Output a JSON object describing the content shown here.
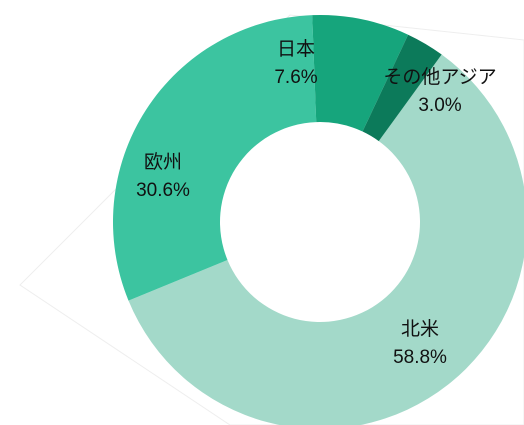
{
  "chart_data": {
    "type": "donut",
    "categories": [
      "北米",
      "欧州",
      "日本",
      "その他アジア"
    ],
    "values": [
      58.8,
      30.6,
      7.6,
      3.0
    ],
    "value_labels": [
      "58.8%",
      "30.6%",
      "7.6%",
      "3.0%"
    ],
    "colors": [
      "#a3d9c9",
      "#3cc4a0",
      "#16a57c",
      "#0c7a5a"
    ]
  }
}
